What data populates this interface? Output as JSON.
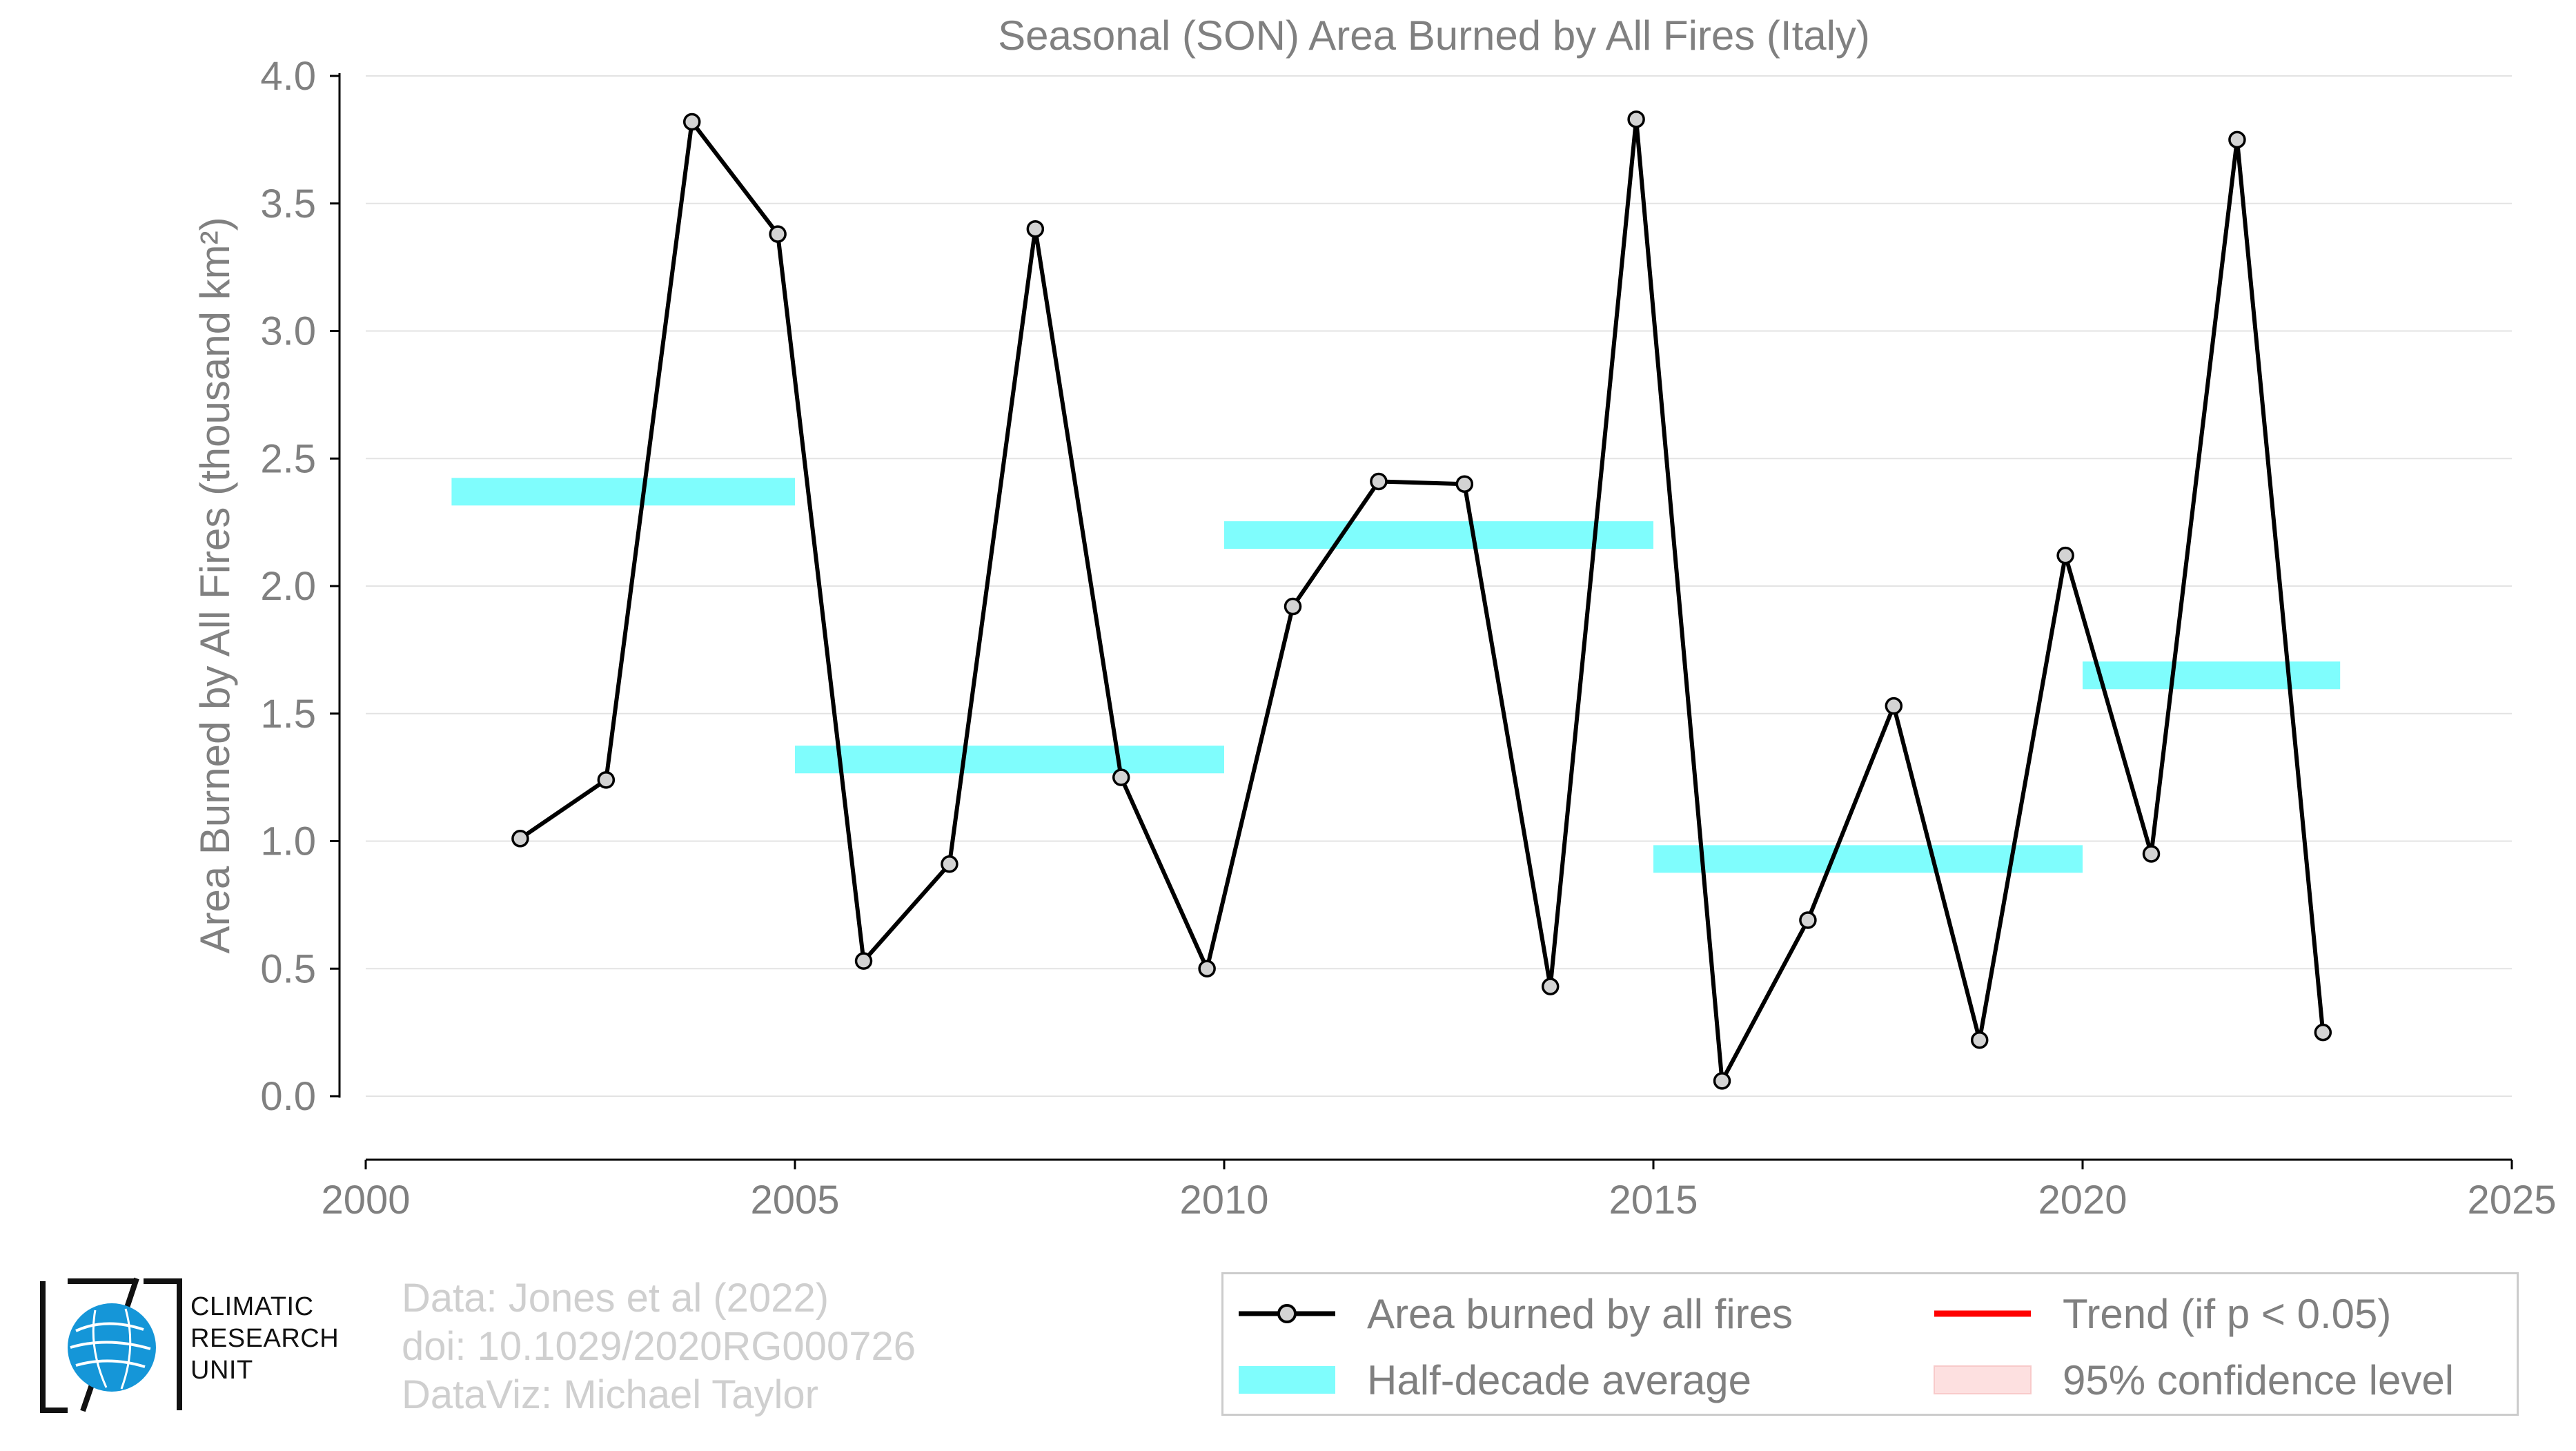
{
  "chart_data": {
    "type": "line",
    "title": "Seasonal (SON) Area Burned by All Fires (Italy)",
    "xlabel": "",
    "ylabel": "Area Burned by All Fires (thousand km²)",
    "xlim": [
      2000,
      2025
    ],
    "ylim": [
      0.0,
      4.0
    ],
    "x_ticks": [
      "2000",
      "2005",
      "2010",
      "2015",
      "2020",
      "2025"
    ],
    "y_ticks": [
      "0.0",
      "0.5",
      "1.0",
      "1.5",
      "2.0",
      "2.5",
      "3.0",
      "3.5",
      "4.0"
    ],
    "grid": true,
    "series": [
      {
        "name": "Area burned by all fires",
        "color": "#000000",
        "marker_color": "#d3d3d3",
        "x": [
          2001.8,
          2002.8,
          2003.8,
          2004.8,
          2005.8,
          2006.8,
          2007.8,
          2008.8,
          2009.8,
          2010.8,
          2011.8,
          2012.8,
          2013.8,
          2014.8,
          2015.8,
          2016.8,
          2017.8,
          2018.8,
          2019.8,
          2020.8,
          2021.8,
          2022.8
        ],
        "values": [
          1.01,
          1.24,
          3.82,
          3.38,
          0.53,
          0.91,
          3.4,
          1.25,
          0.5,
          1.92,
          2.41,
          2.4,
          0.43,
          3.83,
          0.06,
          0.69,
          1.53,
          0.22,
          2.12,
          0.95,
          3.75,
          0.25
        ]
      }
    ],
    "half_decade_average": {
      "name": "Half-decade average",
      "color": "#7ffdfd",
      "segments": [
        {
          "x_start": 2001.0,
          "x_end": 2005.0,
          "value": 2.37
        },
        {
          "x_start": 2005.0,
          "x_end": 2010.0,
          "value": 1.32
        },
        {
          "x_start": 2010.0,
          "x_end": 2015.0,
          "value": 2.2
        },
        {
          "x_start": 2015.0,
          "x_end": 2020.0,
          "value": 0.93
        },
        {
          "x_start": 2020.0,
          "x_end": 2023.0,
          "value": 1.65
        }
      ]
    },
    "legend": {
      "placement": "bottom-right",
      "entries": [
        {
          "label": "Area burned by all fires",
          "kind": "line-marker",
          "color": "#000000"
        },
        {
          "label": "Trend (if p < 0.05)",
          "kind": "line",
          "color": "#ff0000"
        },
        {
          "label": "Half-decade average",
          "kind": "patch",
          "color": "#7ffdfd"
        },
        {
          "label": "95% confidence level",
          "kind": "patch",
          "color": "#fde0e0"
        }
      ]
    }
  },
  "logo": {
    "line1": "CLIMATIC",
    "line2": "RESEARCH",
    "line3": "UNIT"
  },
  "credits": {
    "data": "Data: Jones et al (2022)",
    "doi": "doi: 10.1029/2020RG000726",
    "dataviz": "DataViz: Michael Taylor"
  }
}
